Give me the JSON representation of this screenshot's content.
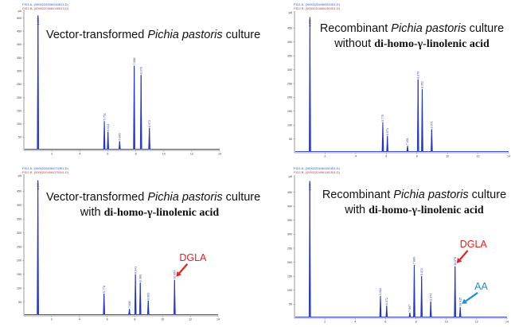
{
  "colors": {
    "trace": "#2233cc",
    "axis": "#555555",
    "dgla": "#e8201c",
    "aa": "#1a8fe0"
  },
  "chart_data": [
    {
      "type": "line",
      "legend": [
        "FID1 A, (0000220406\\040613.D)",
        "FID2 B, (0000220406\\040613.D)"
      ],
      "yunit": "pA",
      "caption": {
        "line1_pre": "Vector-transformed ",
        "line1_ital": "Pichia pastoris",
        "line1_post": " culture",
        "line2": ""
      },
      "xlim": [
        0,
        14
      ],
      "ylim": [
        0,
        520
      ],
      "xticks": [
        "2",
        "4",
        "6",
        "8",
        "10",
        "12",
        "14"
      ],
      "yticks": [
        "50",
        "100",
        "150",
        "200",
        "250",
        "300",
        "350",
        "400",
        "450",
        "500"
      ],
      "solvent_label": "1.009",
      "peaks": [
        {
          "rt": 1.009,
          "h": 510,
          "label": ""
        },
        {
          "rt": 5.752,
          "h": 110,
          "label": "5.752"
        },
        {
          "rt": 6.014,
          "h": 70,
          "label": "6.014"
        },
        {
          "rt": 6.846,
          "h": 35,
          "label": "6.846"
        },
        {
          "rt": 7.888,
          "h": 320,
          "label": "7.888"
        },
        {
          "rt": 8.378,
          "h": 285,
          "label": "8.378"
        },
        {
          "rt": 8.972,
          "h": 85,
          "label": "8.972"
        }
      ],
      "annotations": []
    },
    {
      "type": "line",
      "legend": [
        "FID1 A, (0000220406\\051051.D)",
        "FID2 B, (0000220406\\051051.D)"
      ],
      "yunit": "pA",
      "caption": {
        "line1_pre": "Recombinant ",
        "line1_ital": "Pichia pastoris",
        "line1_post": " culture",
        "line2_pre": "without ",
        "line2_bold": "di-homo-γ-linolenic acid"
      },
      "xlim": [
        0,
        14
      ],
      "ylim": [
        0,
        500
      ],
      "xticks": [
        "2",
        "4",
        "6",
        "8",
        "10",
        "12",
        "14"
      ],
      "yticks": [
        "50",
        "100",
        "150",
        "200",
        "250",
        "300",
        "350",
        "400",
        "450"
      ],
      "solvent_label": "1.009",
      "peaks": [
        {
          "rt": 1.009,
          "h": 490,
          "label": ""
        },
        {
          "rt": 5.775,
          "h": 110,
          "label": "5.775"
        },
        {
          "rt": 6.073,
          "h": 60,
          "label": "6.073"
        },
        {
          "rt": 7.391,
          "h": 25,
          "label": "7.391"
        },
        {
          "rt": 8.079,
          "h": 265,
          "label": "8.079"
        },
        {
          "rt": 8.351,
          "h": 230,
          "label": "8.351"
        },
        {
          "rt": 8.971,
          "h": 85,
          "label": "8.971"
        }
      ],
      "annotations": []
    },
    {
      "type": "line",
      "legend": [
        "FID1 A, (0000220406\\070391.D)",
        "FID2 B, (0000220406\\070391.D)"
      ],
      "yunit": "pA",
      "caption": {
        "line1_pre": "Vector-transformed ",
        "line1_ital": "Pichia pastoris",
        "line1_post": " culture",
        "line2_pre": "with ",
        "line2_bold": "di-homo-γ-linolenic acid"
      },
      "xlim": [
        0,
        14
      ],
      "ylim": [
        0,
        500
      ],
      "xticks": [
        "2",
        "4",
        "6",
        "8",
        "10",
        "12",
        "14"
      ],
      "yticks": [
        "50",
        "100",
        "150",
        "200",
        "250",
        "300",
        "350",
        "400",
        "450"
      ],
      "solvent_label": "1.009",
      "peaks": [
        {
          "rt": 1.009,
          "h": 490,
          "label": ""
        },
        {
          "rt": 5.778,
          "h": 80,
          "label": "5.778"
        },
        {
          "rt": 7.606,
          "h": 25,
          "label": "7.606"
        },
        {
          "rt": 8.041,
          "h": 150,
          "label": "8.041"
        },
        {
          "rt": 8.389,
          "h": 120,
          "label": "8.389"
        },
        {
          "rt": 8.963,
          "h": 55,
          "label": "8.963"
        },
        {
          "rt": 10.864,
          "h": 130,
          "label": "10.864"
        }
      ],
      "annotations": [
        {
          "text": "DGLA",
          "color": "#e8201c",
          "rt": 10.864
        }
      ]
    },
    {
      "type": "line",
      "legend": [
        "FID1 A, (0000220406\\181351.D)",
        "FID2 B, (0000220406\\181351.D)"
      ],
      "yunit": "pA",
      "caption": {
        "line1_pre": "Recombinant ",
        "line1_ital": "Pichia pastoris",
        "line1_post": " culture",
        "line2_pre": "with ",
        "line2_bold": "di-homo-γ-linolenic acid"
      },
      "xlim": [
        0,
        14
      ],
      "ylim": [
        0,
        500
      ],
      "xticks": [
        "2",
        "4",
        "6",
        "8",
        "10",
        "12",
        "14"
      ],
      "yticks": [
        "50",
        "100",
        "150",
        "200",
        "250",
        "300",
        "350",
        "400",
        "450"
      ],
      "solvent_label": "1.009",
      "peaks": [
        {
          "rt": 1.009,
          "h": 490,
          "label": ""
        },
        {
          "rt": 5.662,
          "h": 80,
          "label": "5.662"
        },
        {
          "rt": 6.072,
          "h": 45,
          "label": "6.072"
        },
        {
          "rt": 7.597,
          "h": 20,
          "label": "7.597"
        },
        {
          "rt": 7.889,
          "h": 190,
          "label": "7.889"
        },
        {
          "rt": 8.372,
          "h": 150,
          "label": "8.372"
        },
        {
          "rt": 8.974,
          "h": 60,
          "label": "8.974"
        },
        {
          "rt": 10.576,
          "h": 185,
          "label": "10.576"
        },
        {
          "rt": 10.915,
          "h": 40,
          "label": "10.915"
        }
      ],
      "annotations": [
        {
          "text": "DGLA",
          "color": "#e8201c",
          "rt": 10.576
        },
        {
          "text": "AA",
          "color": "#1a8fe0",
          "rt": 10.915
        }
      ]
    }
  ]
}
